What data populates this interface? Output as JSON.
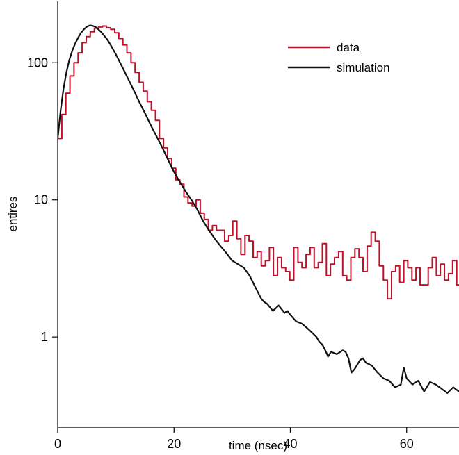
{
  "chart_data": {
    "type": "line",
    "xlabel": "time (nsec)",
    "ylabel": "entires",
    "xlim": [
      0,
      69
    ],
    "ylim": [
      0.22,
      280
    ],
    "yscale": "log",
    "xticks": [
      0,
      20,
      40,
      60
    ],
    "yticks": [
      1,
      10,
      100
    ],
    "legend_position": "top-right",
    "legend": [
      {
        "label": "data",
        "color": "#c0102a"
      },
      {
        "label": "simulation",
        "color": "#111111"
      }
    ],
    "series": [
      {
        "name": "data",
        "color": "#c0102a",
        "style": "step",
        "bin_width": 0.7,
        "x_start": 0,
        "values": [
          28,
          42,
          60,
          80,
          100,
          118,
          140,
          155,
          168,
          178,
          182,
          185,
          180,
          175,
          165,
          150,
          135,
          118,
          100,
          85,
          72,
          62,
          52,
          45,
          38,
          28,
          24,
          20,
          17,
          14,
          13,
          10.5,
          9.5,
          9,
          10,
          8,
          7.2,
          6,
          6.5,
          6,
          6,
          5,
          5.5,
          7,
          5.2,
          4,
          5.5,
          5,
          3.8,
          4.2,
          3.3,
          3.6,
          4.5,
          2.8,
          3.8,
          3.2,
          3,
          2.6,
          4.5,
          3.5,
          3.2,
          4,
          4.5,
          3.2,
          3.5,
          4.8,
          2.8,
          3.4,
          3.8,
          4.2,
          2.8,
          2.6,
          3.8,
          4.4,
          3.8,
          3,
          4.6,
          5.8,
          5,
          3.3,
          2.6,
          1.9,
          3,
          3.3,
          2.5,
          3.6,
          3.2,
          2.6,
          3.2,
          2.4,
          2.4,
          3.2,
          3.8,
          2.8,
          3.4,
          2.6,
          2.9,
          3.6,
          2.4,
          2.3,
          2.6,
          2.3,
          2.5,
          2.2,
          2.2,
          2.3,
          2.6,
          2.5,
          2.2,
          2.9,
          2.6,
          3.2,
          3.3,
          2.3,
          3.1,
          2.1,
          1.4,
          1.5,
          2.6,
          0.45,
          0.6,
          1.5,
          0.55,
          0.9,
          1.3,
          1.6,
          1.2,
          0.9,
          0.6,
          0.9,
          1.3,
          0.5,
          1.3,
          0.55,
          1.3,
          1,
          0.4,
          1.3,
          1.3,
          0.4,
          0.9,
          0.4
        ]
      },
      {
        "name": "simulation",
        "color": "#111111",
        "style": "line",
        "points": [
          [
            0,
            28
          ],
          [
            0.5,
            45
          ],
          [
            1,
            65
          ],
          [
            1.5,
            85
          ],
          [
            2,
            105
          ],
          [
            2.5,
            122
          ],
          [
            3,
            138
          ],
          [
            3.5,
            152
          ],
          [
            4,
            165
          ],
          [
            4.5,
            175
          ],
          [
            5,
            183
          ],
          [
            5.5,
            187
          ],
          [
            6,
            186
          ],
          [
            6.5,
            182
          ],
          [
            7,
            175
          ],
          [
            7.5,
            167
          ],
          [
            8,
            157
          ],
          [
            8.5,
            148
          ],
          [
            9,
            137
          ],
          [
            10,
            115
          ],
          [
            11,
            95
          ],
          [
            12,
            78
          ],
          [
            13,
            64
          ],
          [
            14,
            52
          ],
          [
            15,
            43
          ],
          [
            16,
            35
          ],
          [
            17,
            29
          ],
          [
            18,
            24
          ],
          [
            19,
            19.5
          ],
          [
            20,
            16
          ],
          [
            21,
            13.5
          ],
          [
            22,
            11.5
          ],
          [
            23,
            10
          ],
          [
            24,
            8.5
          ],
          [
            25,
            7
          ],
          [
            26,
            6
          ],
          [
            27,
            5.2
          ],
          [
            28,
            4.6
          ],
          [
            29,
            4.1
          ],
          [
            30,
            3.6
          ],
          [
            31,
            3.4
          ],
          [
            32,
            3.2
          ],
          [
            33,
            2.8
          ],
          [
            34,
            2.3
          ],
          [
            35,
            1.9
          ],
          [
            35.5,
            1.8
          ],
          [
            36,
            1.75
          ],
          [
            37,
            1.55
          ],
          [
            38,
            1.7
          ],
          [
            39,
            1.5
          ],
          [
            39.5,
            1.55
          ],
          [
            40,
            1.45
          ],
          [
            41,
            1.3
          ],
          [
            42,
            1.25
          ],
          [
            43,
            1.15
          ],
          [
            44,
            1.05
          ],
          [
            44.5,
            1
          ],
          [
            45,
            0.92
          ],
          [
            45.5,
            0.88
          ],
          [
            46,
            0.8
          ],
          [
            46.5,
            0.72
          ],
          [
            47,
            0.78
          ],
          [
            48,
            0.75
          ],
          [
            49,
            0.8
          ],
          [
            49.5,
            0.78
          ],
          [
            50,
            0.7
          ],
          [
            50.5,
            0.55
          ],
          [
            51,
            0.58
          ],
          [
            52,
            0.68
          ],
          [
            52.5,
            0.7
          ],
          [
            53,
            0.65
          ],
          [
            54,
            0.62
          ],
          [
            55,
            0.55
          ],
          [
            56,
            0.5
          ],
          [
            57,
            0.48
          ],
          [
            58,
            0.43
          ],
          [
            58.5,
            0.44
          ],
          [
            59,
            0.45
          ],
          [
            59.5,
            0.6
          ],
          [
            60,
            0.5
          ],
          [
            61,
            0.45
          ],
          [
            62,
            0.48
          ],
          [
            63,
            0.4
          ],
          [
            64,
            0.47
          ],
          [
            65,
            0.45
          ],
          [
            66,
            0.42
          ],
          [
            67,
            0.39
          ],
          [
            68,
            0.43
          ],
          [
            69,
            0.4
          ]
        ]
      }
    ]
  }
}
